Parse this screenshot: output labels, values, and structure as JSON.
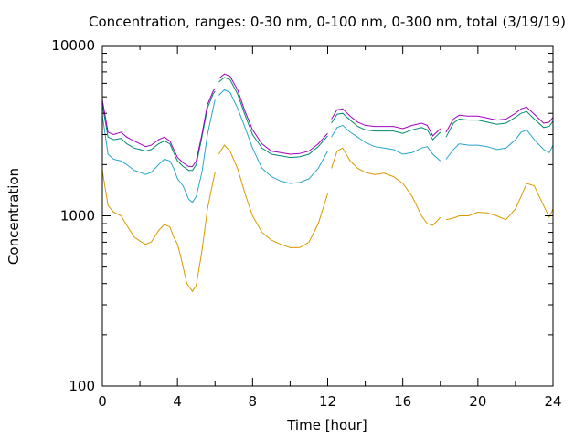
{
  "chart_data": {
    "type": "line",
    "title": "Concentration, ranges: 0-30 nm, 0-100 nm, 0-300 nm, total (3/19/19)",
    "xlabel": "Time [hour]",
    "ylabel": "Concentration",
    "xlim": [
      0,
      24
    ],
    "ylim": [
      100,
      10000
    ],
    "yscale": "log",
    "grid": false,
    "legend": "none",
    "x_ticks": [
      0,
      4,
      8,
      12,
      16,
      20,
      24
    ],
    "y_ticks": [
      100,
      1000,
      10000
    ],
    "y_tick_labels": [
      "100",
      "1000",
      "10000"
    ],
    "x_tick_labels": [
      "0",
      "4",
      "8",
      "12",
      "16",
      "20",
      "24"
    ],
    "series": [
      {
        "color": "#d99a00",
        "points": [
          [
            0,
            1850
          ],
          [
            0.3,
            1150
          ],
          [
            0.6,
            1050
          ],
          [
            1,
            1000
          ],
          [
            1.3,
            880
          ],
          [
            1.7,
            750
          ],
          [
            2,
            710
          ],
          [
            2.3,
            680
          ],
          [
            2.6,
            700
          ],
          [
            3,
            820
          ],
          [
            3.3,
            890
          ],
          [
            3.6,
            860
          ],
          [
            3.8,
            750
          ],
          [
            4,
            680
          ],
          [
            4.2,
            560
          ],
          [
            4.5,
            400
          ],
          [
            4.8,
            360
          ],
          [
            5.0,
            390
          ],
          [
            5.3,
            620
          ],
          [
            5.6,
            1100
          ],
          [
            5.9,
            1600
          ],
          [
            6.0,
            1800
          ],
          null,
          [
            6.2,
            2300
          ],
          [
            6.5,
            2600
          ],
          [
            6.8,
            2400
          ],
          [
            7.2,
            1900
          ],
          [
            7.6,
            1350
          ],
          [
            8,
            1000
          ],
          [
            8.5,
            800
          ],
          [
            9,
            720
          ],
          [
            9.5,
            680
          ],
          [
            10,
            650
          ],
          [
            10.5,
            650
          ],
          [
            11,
            700
          ],
          [
            11.5,
            900
          ],
          [
            12,
            1350
          ],
          null,
          [
            12.2,
            1900
          ],
          [
            12.5,
            2400
          ],
          [
            12.8,
            2500
          ],
          [
            13.2,
            2100
          ],
          [
            13.6,
            1900
          ],
          [
            14,
            1800
          ],
          [
            14.5,
            1750
          ],
          [
            15,
            1780
          ],
          [
            15.5,
            1700
          ],
          [
            16,
            1550
          ],
          [
            16.5,
            1300
          ],
          [
            17,
            1000
          ],
          [
            17.3,
            900
          ],
          [
            17.6,
            880
          ],
          [
            18,
            980
          ],
          null,
          [
            18.3,
            950
          ],
          [
            18.7,
            970
          ],
          [
            19,
            1000
          ],
          [
            19.5,
            1000
          ],
          [
            20,
            1050
          ],
          [
            20.5,
            1040
          ],
          [
            21,
            1000
          ],
          [
            21.5,
            950
          ],
          [
            22,
            1100
          ],
          [
            22.3,
            1300
          ],
          [
            22.6,
            1550
          ],
          [
            23,
            1500
          ],
          [
            23.5,
            1150
          ],
          [
            23.8,
            980
          ],
          [
            24,
            1100
          ]
        ]
      },
      {
        "color": "#2aa5c9",
        "points": [
          [
            0,
            3900
          ],
          [
            0.3,
            2300
          ],
          [
            0.6,
            2150
          ],
          [
            1,
            2100
          ],
          [
            1.3,
            2000
          ],
          [
            1.7,
            1850
          ],
          [
            2,
            1800
          ],
          [
            2.3,
            1750
          ],
          [
            2.6,
            1800
          ],
          [
            3,
            2000
          ],
          [
            3.3,
            2150
          ],
          [
            3.6,
            2100
          ],
          [
            3.8,
            1900
          ],
          [
            4,
            1650
          ],
          [
            4.3,
            1500
          ],
          [
            4.6,
            1250
          ],
          [
            4.8,
            1200
          ],
          [
            5.0,
            1300
          ],
          [
            5.3,
            1800
          ],
          [
            5.6,
            3000
          ],
          [
            5.9,
            4300
          ],
          [
            6.0,
            4800
          ],
          null,
          [
            6.2,
            5100
          ],
          [
            6.5,
            5500
          ],
          [
            6.8,
            5300
          ],
          [
            7.2,
            4300
          ],
          [
            7.6,
            3300
          ],
          [
            8,
            2500
          ],
          [
            8.5,
            1900
          ],
          [
            9,
            1700
          ],
          [
            9.5,
            1600
          ],
          [
            10,
            1550
          ],
          [
            10.5,
            1570
          ],
          [
            11,
            1650
          ],
          [
            11.5,
            1900
          ],
          [
            12,
            2400
          ],
          null,
          [
            12.2,
            2900
          ],
          [
            12.5,
            3300
          ],
          [
            12.8,
            3400
          ],
          [
            13.2,
            3100
          ],
          [
            13.6,
            2900
          ],
          [
            14,
            2700
          ],
          [
            14.5,
            2550
          ],
          [
            15,
            2500
          ],
          [
            15.5,
            2450
          ],
          [
            16,
            2300
          ],
          [
            16.5,
            2350
          ],
          [
            17,
            2500
          ],
          [
            17.3,
            2550
          ],
          [
            17.6,
            2300
          ],
          [
            18,
            2100
          ],
          null,
          [
            18.3,
            2150
          ],
          [
            18.7,
            2450
          ],
          [
            19,
            2650
          ],
          [
            19.5,
            2600
          ],
          [
            20,
            2600
          ],
          [
            20.5,
            2550
          ],
          [
            21,
            2450
          ],
          [
            21.5,
            2500
          ],
          [
            22,
            2800
          ],
          [
            22.3,
            3100
          ],
          [
            22.6,
            3200
          ],
          [
            23,
            2800
          ],
          [
            23.5,
            2450
          ],
          [
            23.8,
            2350
          ],
          [
            24,
            2600
          ]
        ]
      },
      {
        "color": "#008a6e",
        "points": [
          [
            0,
            4500
          ],
          [
            0.3,
            2900
          ],
          [
            0.6,
            2800
          ],
          [
            1,
            2850
          ],
          [
            1.3,
            2650
          ],
          [
            1.7,
            2500
          ],
          [
            2,
            2450
          ],
          [
            2.3,
            2400
          ],
          [
            2.6,
            2450
          ],
          [
            3,
            2650
          ],
          [
            3.3,
            2750
          ],
          [
            3.6,
            2650
          ],
          [
            3.8,
            2350
          ],
          [
            4,
            2100
          ],
          [
            4.3,
            1950
          ],
          [
            4.6,
            1850
          ],
          [
            4.8,
            1850
          ],
          [
            5.0,
            2000
          ],
          [
            5.3,
            2900
          ],
          [
            5.6,
            4300
          ],
          [
            5.9,
            5200
          ],
          [
            6.0,
            5400
          ],
          null,
          [
            6.2,
            6100
          ],
          [
            6.5,
            6500
          ],
          [
            6.8,
            6300
          ],
          [
            7.2,
            5200
          ],
          [
            7.6,
            3900
          ],
          [
            8,
            3000
          ],
          [
            8.5,
            2500
          ],
          [
            9,
            2300
          ],
          [
            9.5,
            2250
          ],
          [
            10,
            2200
          ],
          [
            10.5,
            2220
          ],
          [
            11,
            2300
          ],
          [
            11.5,
            2550
          ],
          [
            12,
            2950
          ],
          null,
          [
            12.2,
            3500
          ],
          [
            12.5,
            3950
          ],
          [
            12.8,
            4000
          ],
          [
            13.2,
            3650
          ],
          [
            13.6,
            3350
          ],
          [
            14,
            3200
          ],
          [
            14.5,
            3150
          ],
          [
            15,
            3150
          ],
          [
            15.5,
            3150
          ],
          [
            16,
            3050
          ],
          [
            16.5,
            3200
          ],
          [
            17,
            3300
          ],
          [
            17.3,
            3200
          ],
          [
            17.6,
            2800
          ],
          [
            18,
            3100
          ],
          null,
          [
            18.3,
            2900
          ],
          [
            18.7,
            3500
          ],
          [
            19,
            3700
          ],
          [
            19.5,
            3650
          ],
          [
            20,
            3650
          ],
          [
            20.5,
            3550
          ],
          [
            21,
            3450
          ],
          [
            21.5,
            3500
          ],
          [
            22,
            3800
          ],
          [
            22.3,
            4000
          ],
          [
            22.6,
            4100
          ],
          [
            23,
            3700
          ],
          [
            23.5,
            3300
          ],
          [
            23.8,
            3350
          ],
          [
            24,
            3600
          ]
        ]
      },
      {
        "color": "#a000c0",
        "points": [
          [
            0,
            4800
          ],
          [
            0.3,
            3100
          ],
          [
            0.6,
            3000
          ],
          [
            1,
            3100
          ],
          [
            1.3,
            2900
          ],
          [
            1.7,
            2750
          ],
          [
            2,
            2650
          ],
          [
            2.3,
            2550
          ],
          [
            2.6,
            2600
          ],
          [
            3,
            2800
          ],
          [
            3.3,
            2900
          ],
          [
            3.6,
            2750
          ],
          [
            3.8,
            2450
          ],
          [
            4,
            2200
          ],
          [
            4.3,
            2050
          ],
          [
            4.6,
            1950
          ],
          [
            4.8,
            1950
          ],
          [
            5.0,
            2100
          ],
          [
            5.3,
            3000
          ],
          [
            5.6,
            4500
          ],
          [
            5.9,
            5400
          ],
          [
            6.0,
            5600
          ],
          null,
          [
            6.2,
            6400
          ],
          [
            6.5,
            6800
          ],
          [
            6.8,
            6600
          ],
          [
            7.2,
            5500
          ],
          [
            7.6,
            4100
          ],
          [
            8,
            3200
          ],
          [
            8.5,
            2650
          ],
          [
            9,
            2400
          ],
          [
            9.5,
            2350
          ],
          [
            10,
            2300
          ],
          [
            10.5,
            2320
          ],
          [
            11,
            2400
          ],
          [
            11.5,
            2650
          ],
          [
            12,
            3050
          ],
          null,
          [
            12.2,
            3700
          ],
          [
            12.5,
            4200
          ],
          [
            12.8,
            4250
          ],
          [
            13.2,
            3850
          ],
          [
            13.6,
            3550
          ],
          [
            14,
            3400
          ],
          [
            14.5,
            3350
          ],
          [
            15,
            3350
          ],
          [
            15.5,
            3350
          ],
          [
            16,
            3250
          ],
          [
            16.5,
            3400
          ],
          [
            17,
            3500
          ],
          [
            17.3,
            3400
          ],
          [
            17.6,
            2950
          ],
          [
            18,
            3250
          ],
          null,
          [
            18.3,
            3100
          ],
          [
            18.7,
            3700
          ],
          [
            19,
            3900
          ],
          [
            19.5,
            3850
          ],
          [
            20,
            3850
          ],
          [
            20.5,
            3750
          ],
          [
            21,
            3650
          ],
          [
            21.5,
            3700
          ],
          [
            22,
            4000
          ],
          [
            22.3,
            4250
          ],
          [
            22.6,
            4350
          ],
          [
            23,
            3950
          ],
          [
            23.5,
            3500
          ],
          [
            23.8,
            3550
          ],
          [
            24,
            3800
          ]
        ]
      }
    ]
  }
}
